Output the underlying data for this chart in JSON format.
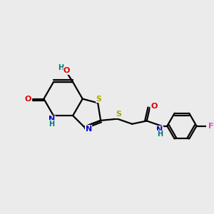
{
  "bg_color": "#ebebeb",
  "atom_colors": {
    "C": "#000000",
    "N": "#0000cc",
    "O": "#dd0000",
    "S": "#aaaa00",
    "F": "#ee44aa",
    "H": "#007777"
  },
  "bond_color": "#000000",
  "lw": 1.6,
  "fs": 8.0
}
